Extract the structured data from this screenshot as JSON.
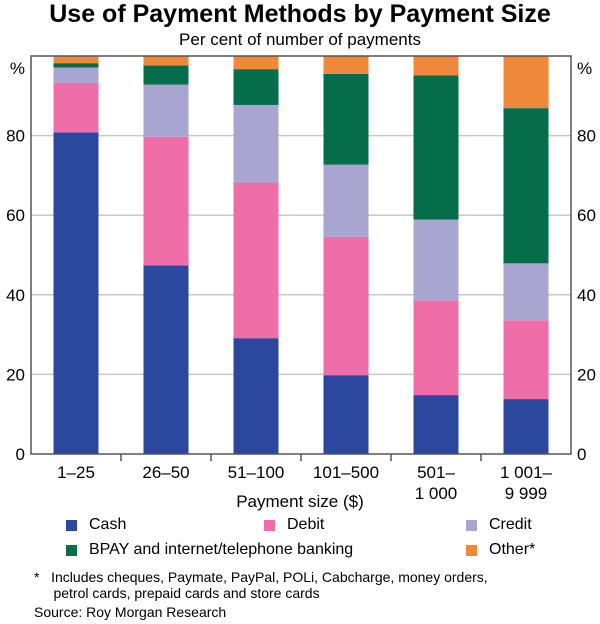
{
  "chart_data": {
    "type": "bar",
    "stacked": true,
    "title": "Use of Payment Methods by Payment Size",
    "subtitle": "Per cent of number of payments",
    "xlabel": "Payment size ($)",
    "ylabel_left": "%",
    "ylabel_right": "%",
    "ylim": [
      0,
      100
    ],
    "yticks": [
      0,
      20,
      40,
      60,
      80
    ],
    "grid": true,
    "categories": [
      "1–25",
      "26–50",
      "51–100",
      "101–500",
      "501–\n1 000",
      "1 001–\n9 999"
    ],
    "series": [
      {
        "name": "Cash",
        "color": "#2c479e",
        "values": [
          80.8,
          47.4,
          29.1,
          19.8,
          14.8,
          13.8
        ]
      },
      {
        "name": "Debit",
        "color": "#ef6ea8",
        "values": [
          12.5,
          32.3,
          39.1,
          34.8,
          23.8,
          19.8
        ]
      },
      {
        "name": "Credit",
        "color": "#a8a6d0",
        "values": [
          3.8,
          13.1,
          19.5,
          18.1,
          20.3,
          14.3
        ]
      },
      {
        "name": "BPAY and internet/telephone banking",
        "color": "#066d4a",
        "values": [
          1.1,
          4.8,
          9.0,
          22.8,
          36.2,
          39.0
        ]
      },
      {
        "name": "Other*",
        "color": "#f0883c",
        "values": [
          1.8,
          2.4,
          3.3,
          4.5,
          4.9,
          13.1
        ]
      }
    ]
  },
  "footnote": "*   Includes cheques, Paymate, PayPal, POLi, Cabcharge, money orders,\n     petrol cards, prepaid cards and store cards",
  "source": "Source: Roy Morgan Research"
}
